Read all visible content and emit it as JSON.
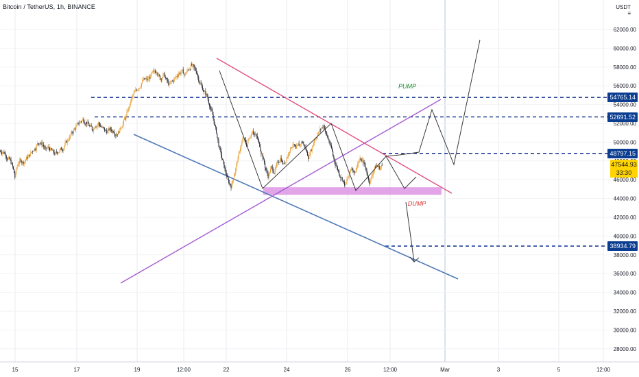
{
  "chart_data": {
    "type": "candlestick",
    "symbol": "Bitcoin / TetherUS, 1h, BINANCE",
    "currency": "USDT",
    "yticks": [
      62000,
      60000,
      58000,
      56000,
      54000,
      52000,
      50000,
      48000,
      46000,
      44000,
      42000,
      40000,
      38000,
      36000,
      34000,
      32000,
      30000,
      28000
    ],
    "ytick_labels": [
      "62000.00",
      "60000.00",
      "58000.00",
      "56000.00",
      "54000.00",
      "52000.00",
      "50000.00",
      "48000.00",
      "46000.00",
      "44000.00",
      "42000.00",
      "40000.00",
      "38000.00",
      "36000.00",
      "34000.00",
      "32000.00",
      "30000.00",
      "28000.00"
    ],
    "xticks": [
      "15",
      "17",
      "19",
      "12:00",
      "22",
      "24",
      "26",
      "12:00",
      "Mar",
      "3",
      "5",
      "12:00"
    ],
    "price_levels": [
      {
        "label": "54765.14",
        "value": 54765.14
      },
      {
        "label": "52691.52",
        "value": 52691.52
      },
      {
        "label": "48797.15",
        "value": 48797.15
      },
      {
        "label": "38934.79",
        "value": 38934.79
      }
    ],
    "current_price": {
      "value": 47544.93,
      "label": "47544.93",
      "countdown": "33:30"
    },
    "annotations": {
      "pump": "PUMP",
      "dump": "DUMP"
    },
    "support_zone": [
      44400,
      45200
    ],
    "price_path": [
      [
        49000,
        48700,
        48200,
        47600,
        46300,
        47800,
        48100,
        47900,
        48400,
        48700,
        49200,
        49600,
        50000,
        49700,
        49200,
        49400,
        49100,
        48600,
        49000,
        49300,
        49600,
        50100,
        50700,
        51200,
        51700,
        52100,
        52400,
        52100,
        51800,
        51400,
        51800,
        52000,
        51600,
        51300,
        51100,
        51400,
        51200,
        50900,
        51300,
        52000,
        52700,
        53800,
        54800,
        55400,
        55800,
        56300,
        56700,
        56600,
        57000,
        57400,
        57600,
        56800,
        57200,
        56600,
        56000,
        56500,
        56900,
        57300,
        57500,
        57100,
        57700,
        58100,
        57900,
        57300,
        56200,
        55500,
        55000,
        54000,
        52900,
        51400,
        49700,
        48300,
        47000,
        45900,
        45300,
        46500,
        48000,
        49400,
        50400,
        49700,
        50600,
        51300,
        50700,
        49900,
        48700,
        47400,
        46400,
        47300,
        46800,
        47700,
        48300,
        47600,
        48300,
        49200,
        49800,
        49200,
        49700,
        50100,
        49400,
        48400,
        49300,
        50300,
        50800,
        51400,
        51800,
        50700,
        49800,
        48600,
        47500,
        46700,
        46200,
        45300,
        46300,
        47300,
        46900,
        47700,
        48200,
        47700,
        46700,
        45600,
        46900,
        47500,
        47300,
        47545
      ]
    ]
  }
}
